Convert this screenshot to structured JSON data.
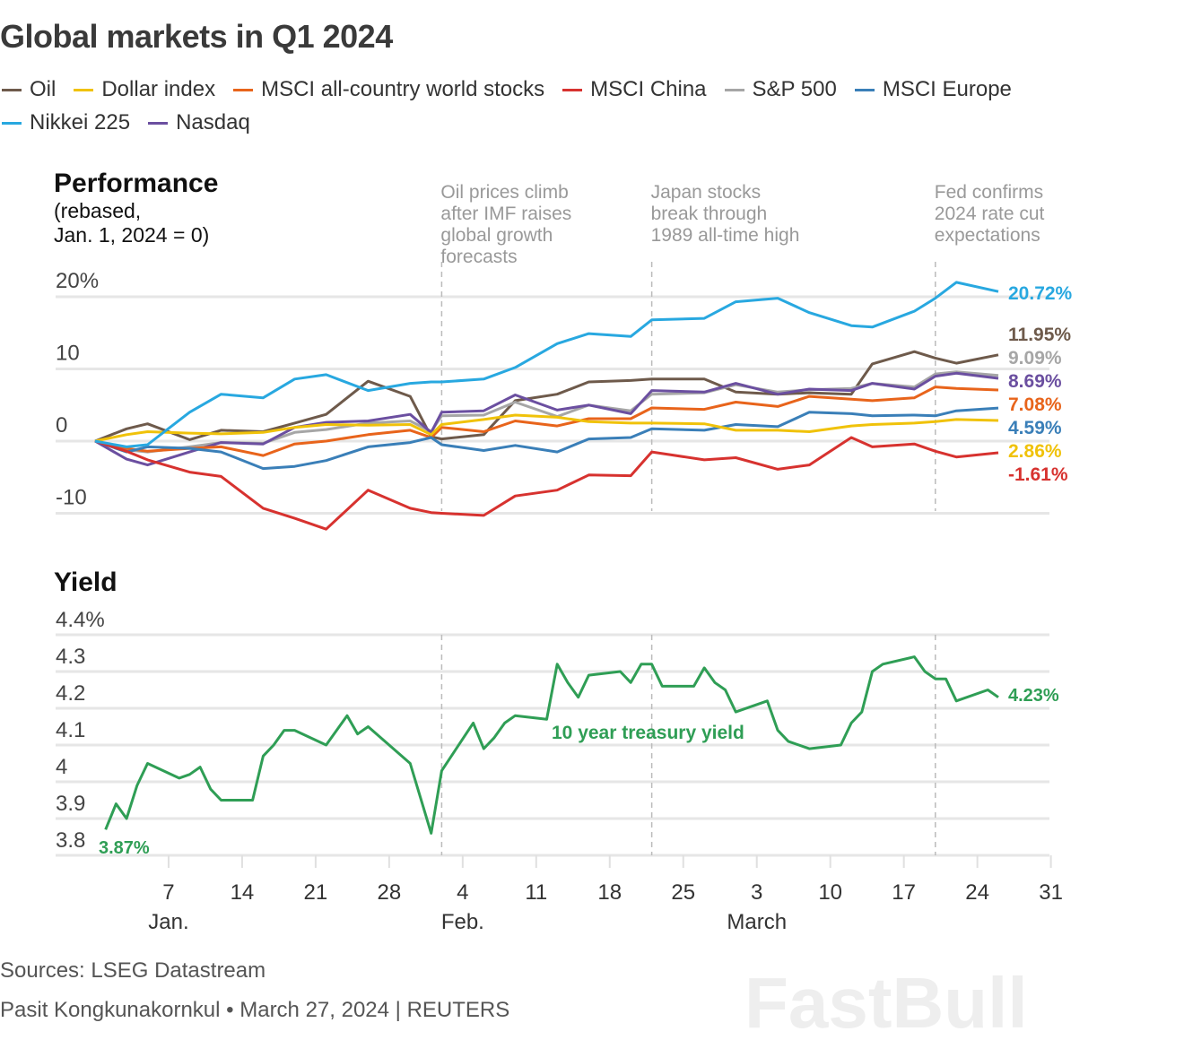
{
  "title": "Global markets in Q1 2024",
  "legend": [
    {
      "name": "Oil",
      "color": "#6e5a4b"
    },
    {
      "name": "Dollar index",
      "color": "#f0c20a"
    },
    {
      "name": "MSCI all-country world stocks",
      "color": "#e8641b"
    },
    {
      "name": "MSCI China",
      "color": "#d7322f"
    },
    {
      "name": "S&P 500",
      "color": "#a6a6a6"
    },
    {
      "name": "MSCI Europe",
      "color": "#3a7fb8"
    },
    {
      "name": "Nikkei 225",
      "color": "#28a8e0"
    },
    {
      "name": "Nasdaq",
      "color": "#6b4fa0"
    }
  ],
  "footer": {
    "sources": "Sources: LSEG Datastream",
    "credit": "Pasit Kongkunakornkul • March 27, 2024 | REUTERS"
  },
  "watermark": "FastBull",
  "chart_data": [
    {
      "type": "line",
      "title": "Performance",
      "subtitle": [
        "(rebased,",
        "Jan. 1, 2024 = 0)"
      ],
      "ylim": [
        -10,
        20
      ],
      "yticks": [
        {
          "v": 20,
          "label": "20%"
        },
        {
          "v": 10,
          "label": "10"
        },
        {
          "v": 0,
          "label": "0"
        },
        {
          "v": -10,
          "label": "-10"
        }
      ],
      "grid": true,
      "annotations": [
        {
          "date": "2024-02-02",
          "lines": [
            "Oil prices climb",
            "after IMF raises",
            "global growth",
            "forecasts"
          ]
        },
        {
          "date": "2024-02-22",
          "lines": [
            "Japan stocks",
            "break through",
            "1989 all-time high"
          ]
        },
        {
          "date": "2024-03-20",
          "lines": [
            "Fed confirms",
            "2024 rate cut",
            "expectations"
          ]
        }
      ],
      "x": [
        "2023-12-31",
        "2024-01-03",
        "2024-01-05",
        "2024-01-09",
        "2024-01-12",
        "2024-01-16",
        "2024-01-19",
        "2024-01-22",
        "2024-01-26",
        "2024-01-30",
        "2024-02-01",
        "2024-02-02",
        "2024-02-06",
        "2024-02-09",
        "2024-02-13",
        "2024-02-16",
        "2024-02-20",
        "2024-02-22",
        "2024-02-27",
        "2024-03-01",
        "2024-03-05",
        "2024-03-08",
        "2024-03-12",
        "2024-03-14",
        "2024-03-18",
        "2024-03-20",
        "2024-03-22",
        "2024-03-26"
      ],
      "series": [
        {
          "name": "Oil",
          "color": "#6e5a4b",
          "end_label": "11.95%",
          "values": [
            0,
            1.7,
            2.4,
            0.2,
            1.5,
            1.3,
            2.5,
            3.7,
            8.3,
            6.2,
            0.6,
            0.3,
            0.9,
            5.6,
            6.5,
            8.2,
            8.4,
            8.6,
            8.6,
            6.8,
            6.5,
            6.7,
            6.5,
            10.7,
            12.4,
            11.5,
            10.8,
            11.95
          ]
        },
        {
          "name": "S&P 500",
          "color": "#a6a6a6",
          "end_label": "9.09%",
          "values": [
            0,
            -1.2,
            -1.5,
            -0.8,
            -0.2,
            -0.3,
            1.2,
            1.6,
            2.5,
            2.8,
            1.3,
            3.5,
            3.6,
            5.4,
            3.4,
            5.0,
            4.2,
            6.5,
            6.7,
            7.8,
            6.8,
            7.1,
            7.3,
            8.0,
            7.5,
            9.3,
            9.6,
            9.09
          ]
        },
        {
          "name": "Nasdaq",
          "color": "#6b4fa0",
          "end_label": "8.69%",
          "values": [
            0,
            -2.5,
            -3.3,
            -1.5,
            -0.2,
            -0.4,
            1.9,
            2.6,
            2.8,
            3.7,
            1.2,
            4.0,
            4.2,
            6.4,
            4.3,
            5.0,
            3.8,
            7.0,
            6.8,
            8.0,
            6.5,
            7.2,
            7.0,
            8.0,
            7.2,
            9.0,
            9.4,
            8.69
          ]
        },
        {
          "name": "MSCI all-country world stocks",
          "color": "#e8641b",
          "end_label": "7.08%",
          "values": [
            0,
            -1,
            -1.4,
            -1,
            -0.8,
            -2,
            -0.4,
            0,
            0.9,
            1.5,
            0.5,
            1.9,
            1.3,
            2.8,
            2.1,
            3.1,
            3.1,
            4.6,
            4.4,
            5.4,
            4.8,
            6.2,
            5.8,
            5.6,
            6,
            7.5,
            7.3,
            7.08
          ]
        },
        {
          "name": "MSCI Europe",
          "color": "#3a7fb8",
          "end_label": "4.59%",
          "values": [
            0,
            -1.5,
            -0.8,
            -1,
            -1.5,
            -3.8,
            -3.5,
            -2.7,
            -0.8,
            -0.2,
            0.5,
            -0.5,
            -1.3,
            -0.6,
            -1.5,
            0.3,
            0.5,
            1.7,
            1.5,
            2.3,
            2.0,
            4.0,
            3.8,
            3.5,
            3.6,
            3.5,
            4.2,
            4.59
          ]
        },
        {
          "name": "Dollar index",
          "color": "#f0c20a",
          "end_label": "2.86%",
          "values": [
            0,
            0.9,
            1.3,
            1.1,
            1.0,
            1.2,
            1.9,
            2.3,
            2.2,
            2.3,
            0.9,
            2.3,
            3.0,
            3.6,
            3.3,
            2.7,
            2.5,
            2.5,
            2.4,
            1.5,
            1.5,
            1.3,
            2.1,
            2.3,
            2.5,
            2.7,
            3.0,
            2.86
          ]
        },
        {
          "name": "MSCI China",
          "color": "#d7322f",
          "end_label": "-1.61%",
          "values": [
            0,
            -1.4,
            -2.6,
            -4.3,
            -4.9,
            -9.3,
            -10.7,
            -12.2,
            -6.8,
            -9.3,
            -9.9,
            -10,
            -10.3,
            -7.6,
            -6.8,
            -4.7,
            -4.8,
            -1.5,
            -2.6,
            -2.3,
            -3.9,
            -3.3,
            0.5,
            -0.8,
            -0.4,
            -1.4,
            -2.2,
            -1.61
          ]
        },
        {
          "name": "Nikkei 225",
          "color": "#28a8e0",
          "end_label": "20.72%",
          "values": [
            0,
            -0.8,
            -0.5,
            4,
            6.5,
            6,
            8.6,
            9.2,
            7,
            8,
            8.2,
            8.2,
            8.6,
            10.2,
            13.5,
            14.9,
            14.5,
            16.8,
            17,
            19.3,
            19.8,
            17.8,
            16,
            15.8,
            18,
            19.8,
            22,
            20.72
          ]
        }
      ]
    },
    {
      "type": "line",
      "title": "Yield",
      "ylim": [
        3.8,
        4.4
      ],
      "yticks": [
        {
          "v": 4.4,
          "label": "4.4%"
        },
        {
          "v": 4.3,
          "label": "4.3"
        },
        {
          "v": 4.2,
          "label": "4.2"
        },
        {
          "v": 4.1,
          "label": "4.1"
        },
        {
          "v": 4.0,
          "label": "4"
        },
        {
          "v": 3.9,
          "label": "3.9"
        },
        {
          "v": 3.8,
          "label": "3.8"
        }
      ],
      "grid": true,
      "xticks": [
        {
          "date": "2024-01-07",
          "label": "7"
        },
        {
          "date": "2024-01-14",
          "label": "14"
        },
        {
          "date": "2024-01-21",
          "label": "21"
        },
        {
          "date": "2024-01-28",
          "label": "28"
        },
        {
          "date": "2024-02-04",
          "label": "4"
        },
        {
          "date": "2024-02-11",
          "label": "11"
        },
        {
          "date": "2024-02-18",
          "label": "18"
        },
        {
          "date": "2024-02-25",
          "label": "25"
        },
        {
          "date": "2024-03-03",
          "label": "3"
        },
        {
          "date": "2024-03-10",
          "label": "10"
        },
        {
          "date": "2024-03-17",
          "label": "17"
        },
        {
          "date": "2024-03-24",
          "label": "24"
        },
        {
          "date": "2024-03-31",
          "label": "31"
        }
      ],
      "months": [
        {
          "date": "2024-01-07",
          "label": "Jan."
        },
        {
          "date": "2024-02-04",
          "label": "Feb."
        },
        {
          "date": "2024-03-03",
          "label": "March"
        }
      ],
      "series": [
        {
          "name": "10 year treasury yield",
          "color": "#2f9e55",
          "start_label": "3.87%",
          "end_label": "4.23%",
          "x": [
            "2024-01-01",
            "2024-01-02",
            "2024-01-03",
            "2024-01-04",
            "2024-01-05",
            "2024-01-08",
            "2024-01-09",
            "2024-01-10",
            "2024-01-11",
            "2024-01-12",
            "2024-01-15",
            "2024-01-16",
            "2024-01-17",
            "2024-01-18",
            "2024-01-19",
            "2024-01-22",
            "2024-01-24",
            "2024-01-25",
            "2024-01-26",
            "2024-01-30",
            "2024-02-01",
            "2024-02-02",
            "2024-02-05",
            "2024-02-06",
            "2024-02-07",
            "2024-02-08",
            "2024-02-09",
            "2024-02-12",
            "2024-02-13",
            "2024-02-14",
            "2024-02-15",
            "2024-02-16",
            "2024-02-19",
            "2024-02-20",
            "2024-02-21",
            "2024-02-22",
            "2024-02-23",
            "2024-02-26",
            "2024-02-27",
            "2024-02-28",
            "2024-02-29",
            "2024-03-01",
            "2024-03-04",
            "2024-03-05",
            "2024-03-06",
            "2024-03-08",
            "2024-03-11",
            "2024-03-12",
            "2024-03-13",
            "2024-03-14",
            "2024-03-15",
            "2024-03-18",
            "2024-03-19",
            "2024-03-20",
            "2024-03-21",
            "2024-03-22",
            "2024-03-25",
            "2024-03-26"
          ],
          "values": [
            3.87,
            3.94,
            3.9,
            3.99,
            4.05,
            4.01,
            4.02,
            4.04,
            3.98,
            3.95,
            3.95,
            4.07,
            4.1,
            4.14,
            4.14,
            4.1,
            4.18,
            4.13,
            4.15,
            4.05,
            3.86,
            4.03,
            4.16,
            4.09,
            4.12,
            4.16,
            4.18,
            4.17,
            4.32,
            4.27,
            4.23,
            4.29,
            4.3,
            4.27,
            4.32,
            4.32,
            4.26,
            4.26,
            4.31,
            4.27,
            4.25,
            4.19,
            4.22,
            4.14,
            4.11,
            4.09,
            4.1,
            4.16,
            4.19,
            4.3,
            4.32,
            4.34,
            4.3,
            4.28,
            4.28,
            4.22,
            4.25,
            4.23
          ]
        }
      ]
    }
  ]
}
